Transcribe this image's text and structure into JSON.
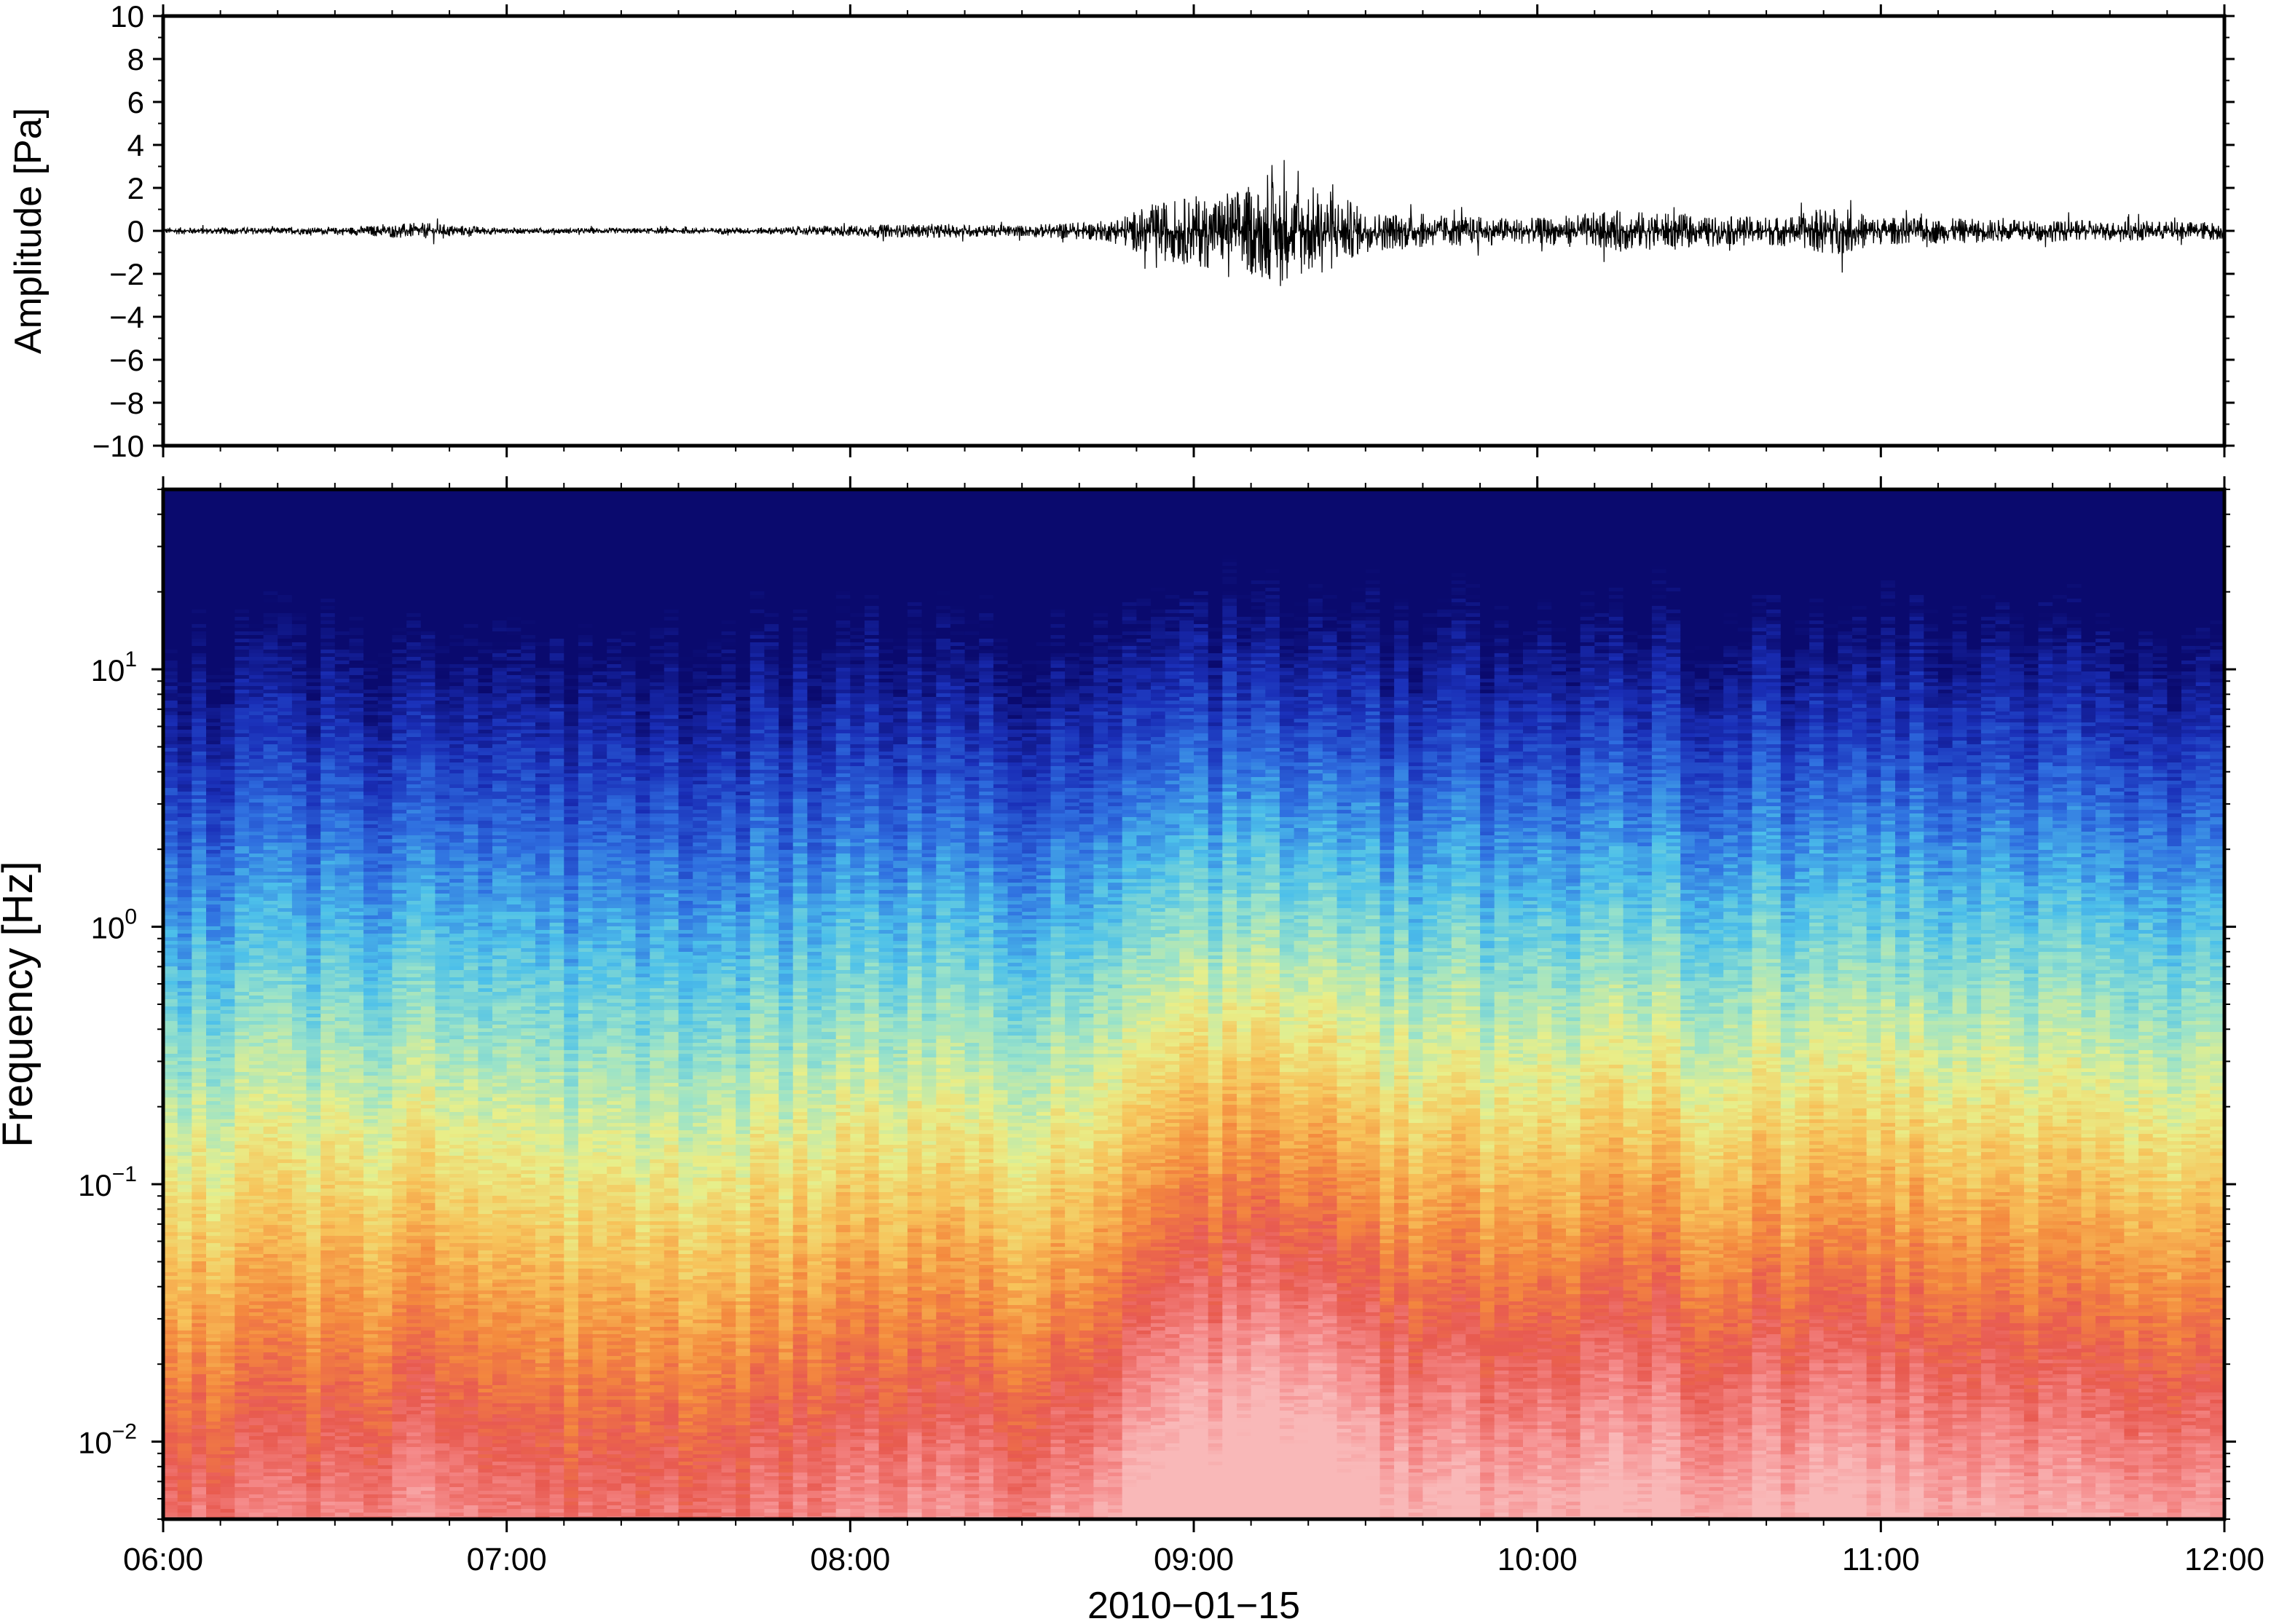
{
  "chart_data": [
    {
      "type": "line",
      "title": "",
      "xlabel": "",
      "ylabel": "Amplitude [Pa]",
      "ylim": [
        -10,
        10
      ],
      "yticks": [
        10,
        8,
        6,
        4,
        2,
        0,
        -2,
        -4,
        -6,
        -8,
        -10
      ],
      "ytick_labels": [
        "10",
        "8",
        "6",
        "4",
        "2",
        "0",
        "−2",
        "−4",
        "−6",
        "−8",
        "−10"
      ],
      "x_range": [
        "06:00",
        "12:00"
      ],
      "grid": false,
      "series": [
        {
          "values_description_envelope": true,
          "x_hours": [
            6.0,
            6.5,
            6.75,
            7.0,
            7.5,
            7.75,
            8.0,
            8.25,
            8.5,
            8.75,
            8.9,
            9.0,
            9.1,
            9.25,
            9.4,
            9.5,
            9.75,
            10.0,
            10.25,
            10.5,
            10.75,
            10.85,
            11.0,
            11.5,
            12.0
          ],
          "peak_amplitude_pa": [
            0.3,
            0.3,
            0.7,
            0.25,
            0.25,
            0.3,
            0.5,
            0.6,
            0.5,
            0.9,
            2.5,
            3.0,
            3.5,
            4.4,
            3.6,
            1.8,
            1.3,
            1.1,
            1.8,
            1.2,
            1.3,
            2.2,
            1.2,
            0.9,
            0.8
          ]
        }
      ]
    },
    {
      "type": "heatmap",
      "title": "",
      "xlabel": "2010−01−15",
      "ylabel": "Frequency [Hz]",
      "yscale": "log",
      "ylim": [
        0.005,
        50
      ],
      "yticks": [
        0.01,
        0.1,
        1,
        10
      ],
      "ytick_labels": [
        {
          "base": "10",
          "exp": "−2"
        },
        {
          "base": "10",
          "exp": "−1"
        },
        {
          "base": "10",
          "exp": "0"
        },
        {
          "base": "10",
          "exp": "1"
        }
      ],
      "xticks": [
        "06:00",
        "07:00",
        "08:00",
        "09:00",
        "10:00",
        "11:00",
        "12:00"
      ],
      "colormap": [
        "#0a0a6e",
        "#1a2fb8",
        "#2f6fe0",
        "#4cc0ea",
        "#9be3c8",
        "#e8ef8a",
        "#f7c35a",
        "#f48a3e",
        "#e85a50",
        "#f58a8a",
        "#f9b8b8"
      ],
      "grid": false
    }
  ]
}
